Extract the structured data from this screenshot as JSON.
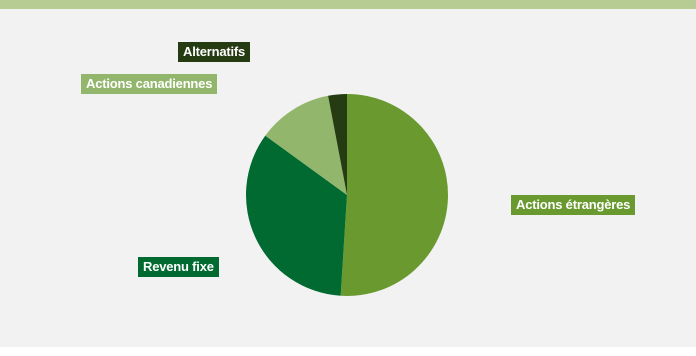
{
  "chart_data": {
    "type": "pie",
    "title": "",
    "slices": [
      {
        "label": "Actions étrangères",
        "value": 51,
        "color": "#6a9a2f"
      },
      {
        "label": "Revenu fixe",
        "value": 34,
        "color": "#006a31"
      },
      {
        "label": "Actions canadiennes",
        "value": 12,
        "color": "#93b66d"
      },
      {
        "label": "Alternatifs",
        "value": 3,
        "color": "#253c13"
      }
    ]
  },
  "colors": {
    "top_bar": "#b7cc92",
    "background": "#f2f2f2"
  }
}
